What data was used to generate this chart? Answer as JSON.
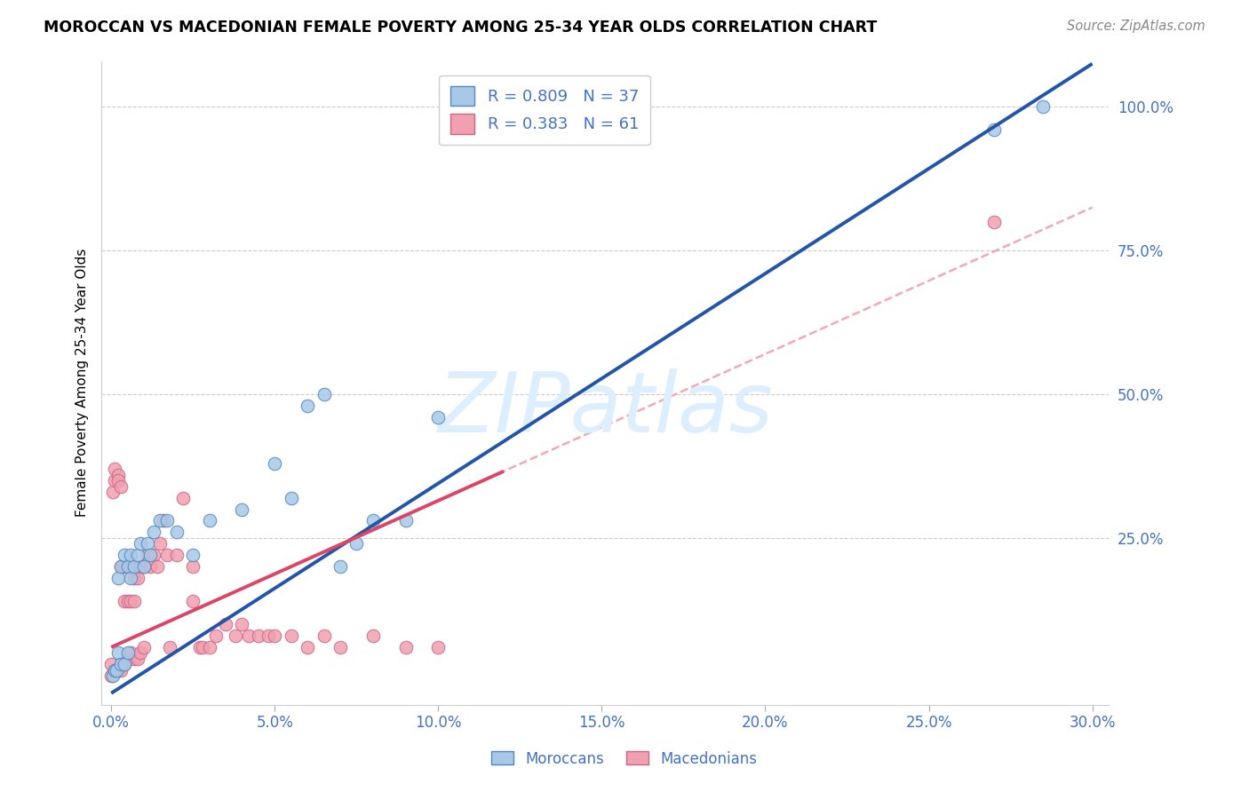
{
  "title": "MOROCCAN VS MACEDONIAN FEMALE POVERTY AMONG 25-34 YEAR OLDS CORRELATION CHART",
  "source": "Source: ZipAtlas.com",
  "ylabel": "Female Poverty Among 25-34 Year Olds",
  "xlim": [
    -0.003,
    0.305
  ],
  "ylim": [
    -0.04,
    1.08
  ],
  "xtick_labels": [
    "0.0%",
    "5.0%",
    "10.0%",
    "15.0%",
    "20.0%",
    "25.0%",
    "30.0%"
  ],
  "xtick_vals": [
    0.0,
    0.05,
    0.1,
    0.15,
    0.2,
    0.25,
    0.3
  ],
  "ytick_vals_right": [
    0.25,
    0.5,
    0.75,
    1.0
  ],
  "ytick_labels_right": [
    "25.0%",
    "50.0%",
    "75.0%",
    "100.0%"
  ],
  "legend_label1": "R = 0.809   N = 37",
  "legend_label2": "R = 0.383   N = 61",
  "color_moroccan_face": "#a8c8e8",
  "color_moroccan_edge": "#5588bb",
  "color_macedonian_face": "#f0a0b0",
  "color_macedonian_edge": "#cc6688",
  "color_line_moroccan": "#2255aa",
  "color_line_macedonian": "#dd4466",
  "color_text_blue": "#4472c4",
  "color_grid": "#cccccc",
  "watermark_text": "ZIPatlas",
  "watermark_color": "#ddeeff",
  "moroccan_x": [
    0.0005,
    0.001,
    0.0015,
    0.002,
    0.002,
    0.003,
    0.003,
    0.004,
    0.004,
    0.005,
    0.005,
    0.006,
    0.006,
    0.007,
    0.008,
    0.009,
    0.01,
    0.011,
    0.012,
    0.013,
    0.015,
    0.017,
    0.02,
    0.025,
    0.03,
    0.04,
    0.05,
    0.055,
    0.06,
    0.065,
    0.07,
    0.075,
    0.08,
    0.09,
    0.1,
    0.27,
    0.285
  ],
  "moroccan_y": [
    0.01,
    0.02,
    0.02,
    0.05,
    0.18,
    0.03,
    0.2,
    0.03,
    0.22,
    0.05,
    0.2,
    0.18,
    0.22,
    0.2,
    0.22,
    0.24,
    0.2,
    0.24,
    0.22,
    0.26,
    0.28,
    0.28,
    0.26,
    0.22,
    0.28,
    0.3,
    0.38,
    0.32,
    0.48,
    0.5,
    0.2,
    0.24,
    0.28,
    0.28,
    0.46,
    0.96,
    1.0
  ],
  "macedonian_x": [
    0.0,
    0.0,
    0.0005,
    0.001,
    0.001,
    0.001,
    0.002,
    0.002,
    0.002,
    0.003,
    0.003,
    0.003,
    0.004,
    0.004,
    0.004,
    0.005,
    0.005,
    0.005,
    0.006,
    0.006,
    0.006,
    0.007,
    0.007,
    0.007,
    0.008,
    0.008,
    0.009,
    0.009,
    0.01,
    0.01,
    0.011,
    0.012,
    0.013,
    0.014,
    0.015,
    0.016,
    0.017,
    0.018,
    0.02,
    0.022,
    0.025,
    0.025,
    0.027,
    0.028,
    0.03,
    0.032,
    0.035,
    0.038,
    0.04,
    0.042,
    0.045,
    0.048,
    0.05,
    0.055,
    0.06,
    0.065,
    0.07,
    0.08,
    0.09,
    0.1,
    0.27
  ],
  "macedonian_y": [
    0.01,
    0.03,
    0.33,
    0.35,
    0.37,
    0.02,
    0.36,
    0.35,
    0.02,
    0.34,
    0.2,
    0.02,
    0.14,
    0.2,
    0.03,
    0.14,
    0.2,
    0.04,
    0.14,
    0.2,
    0.05,
    0.14,
    0.18,
    0.04,
    0.18,
    0.04,
    0.2,
    0.05,
    0.2,
    0.06,
    0.22,
    0.2,
    0.22,
    0.2,
    0.24,
    0.28,
    0.22,
    0.06,
    0.22,
    0.32,
    0.14,
    0.2,
    0.06,
    0.06,
    0.06,
    0.08,
    0.1,
    0.08,
    0.1,
    0.08,
    0.08,
    0.08,
    0.08,
    0.08,
    0.06,
    0.08,
    0.06,
    0.08,
    0.06,
    0.06,
    0.8
  ],
  "moroccan_reg_intercept": -0.02,
  "moroccan_reg_slope": 3.65,
  "macedonian_reg_intercept": 0.06,
  "macedonian_reg_slope": 2.55
}
